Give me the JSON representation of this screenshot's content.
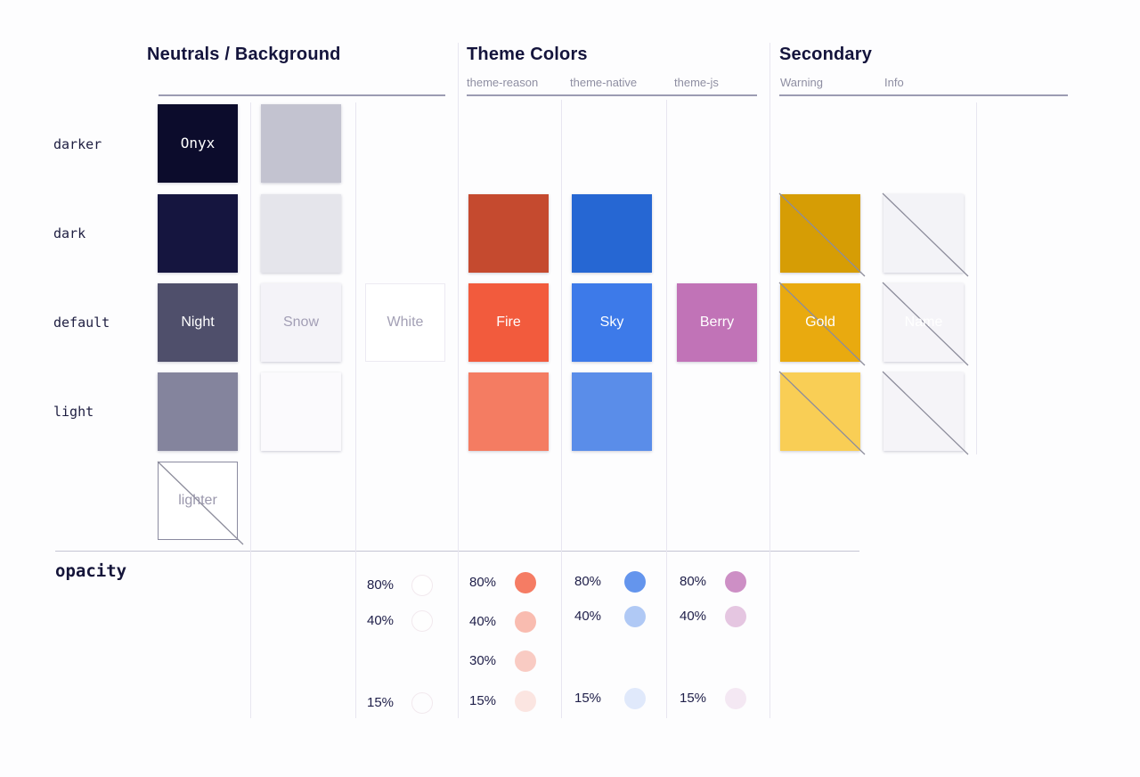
{
  "page": {
    "background": "#fdfdfe"
  },
  "sections": [
    {
      "title": "Neutrals / Background",
      "subcolumns": []
    },
    {
      "title": "Theme Colors",
      "subcolumns": [
        "theme-reason",
        "theme-native",
        "theme-js"
      ]
    },
    {
      "title": "Secondary",
      "subcolumns": [
        "Warning",
        "Info"
      ]
    }
  ],
  "row_labels": [
    "darker",
    "dark",
    "default",
    "light"
  ],
  "opacity_section_label": "opacity",
  "swatches": [
    {
      "column": "neutral-primary",
      "row": "darker",
      "color": "#0c0c2c",
      "label": "Onyx",
      "label_color": "#ffffff",
      "mono_label": true
    },
    {
      "column": "neutral-primary",
      "row": "dark",
      "color": "#15153f"
    },
    {
      "column": "neutral-primary",
      "row": "default",
      "color": "#4f4f6b",
      "label": "Night",
      "label_color": "#ffffff"
    },
    {
      "column": "neutral-primary",
      "row": "light",
      "color": "#84849d"
    },
    {
      "column": "neutral-primary",
      "row": "lighter",
      "color": "#ffffff",
      "label": "lighter",
      "label_color": "#9a97ac",
      "diagonal": true,
      "border": "#8a8aa0",
      "flat": true
    },
    {
      "column": "neutral-snow",
      "row": "darker",
      "color": "#c3c3d0"
    },
    {
      "column": "neutral-snow",
      "row": "dark",
      "color": "#e5e5eb"
    },
    {
      "column": "neutral-snow",
      "row": "default",
      "color": "#f4f3f8",
      "label": "Snow",
      "label_color": "#a29eb5"
    },
    {
      "column": "neutral-snow",
      "row": "light",
      "color": "#fbfafd"
    },
    {
      "column": "white",
      "row": "default",
      "color": "#ffffff",
      "label": "White",
      "label_color": "#a3a0b5",
      "border": "#eceaf2",
      "flat": true
    },
    {
      "column": "theme-reason",
      "row": "dark",
      "color": "#c54a2f"
    },
    {
      "column": "theme-reason",
      "row": "default",
      "color": "#f25b3d",
      "label": "Fire",
      "label_color": "#ffffff"
    },
    {
      "column": "theme-reason",
      "row": "light",
      "color": "#f47c62"
    },
    {
      "column": "theme-native",
      "row": "dark",
      "color": "#2667d3"
    },
    {
      "column": "theme-native",
      "row": "default",
      "color": "#3d7ae9",
      "label": "Sky",
      "label_color": "#ffffff"
    },
    {
      "column": "theme-native",
      "row": "light",
      "color": "#5a8de9"
    },
    {
      "column": "theme-js",
      "row": "default",
      "color": "#c173b7",
      "label": "Berry",
      "label_color": "#ffffff"
    },
    {
      "column": "warning",
      "row": "dark",
      "color": "#d69d05",
      "diagonal": true
    },
    {
      "column": "warning",
      "row": "default",
      "color": "#e9aa0f",
      "label": "Gold",
      "label_color": "#ffffff",
      "diagonal": true
    },
    {
      "column": "warning",
      "row": "light",
      "color": "#f9ce55",
      "diagonal": true
    },
    {
      "column": "info",
      "row": "dark",
      "color": "#f3f3f7",
      "diagonal": true
    },
    {
      "column": "info",
      "row": "default",
      "color": "#f5f4f8",
      "label": "Name",
      "label_color": "#ffffff",
      "diagonal": true
    },
    {
      "column": "info",
      "row": "light",
      "color": "#f5f4f8",
      "diagonal": true
    }
  ],
  "opacity_groups": [
    {
      "column": "white",
      "base_color": "#ffffff",
      "outlined": true,
      "entries": [
        {
          "label": "80%",
          "opacity": 0.8
        },
        {
          "label": "40%",
          "opacity": 0.4
        },
        {
          "label": "15%",
          "opacity": 0.15
        }
      ]
    },
    {
      "column": "theme-reason",
      "base_color": "#f25b3d",
      "entries": [
        {
          "label": "80%",
          "opacity": 0.8
        },
        {
          "label": "40%",
          "opacity": 0.4
        },
        {
          "label": "30%",
          "opacity": 0.3
        },
        {
          "label": "15%",
          "opacity": 0.15
        }
      ]
    },
    {
      "column": "theme-native",
      "base_color": "#3d7ae9",
      "entries": [
        {
          "label": "80%",
          "opacity": 0.8
        },
        {
          "label": "40%",
          "opacity": 0.4
        },
        {
          "label": "15%",
          "opacity": 0.15
        }
      ]
    },
    {
      "column": "theme-js",
      "base_color": "#c173b7",
      "entries": [
        {
          "label": "80%",
          "opacity": 0.8
        },
        {
          "label": "40%",
          "opacity": 0.4
        },
        {
          "label": "15%",
          "opacity": 0.15
        }
      ]
    }
  ],
  "colors": {
    "title_text": "#14143c",
    "subcolumn_text": "#8e8ea2",
    "row_label_text": "#1d1d40",
    "header_rule": "#9c9cb2",
    "column_divider": "#e8e6f0",
    "opacity_divider": "#c4c4d4",
    "diagonal_stroke": "#8d8d9c"
  }
}
